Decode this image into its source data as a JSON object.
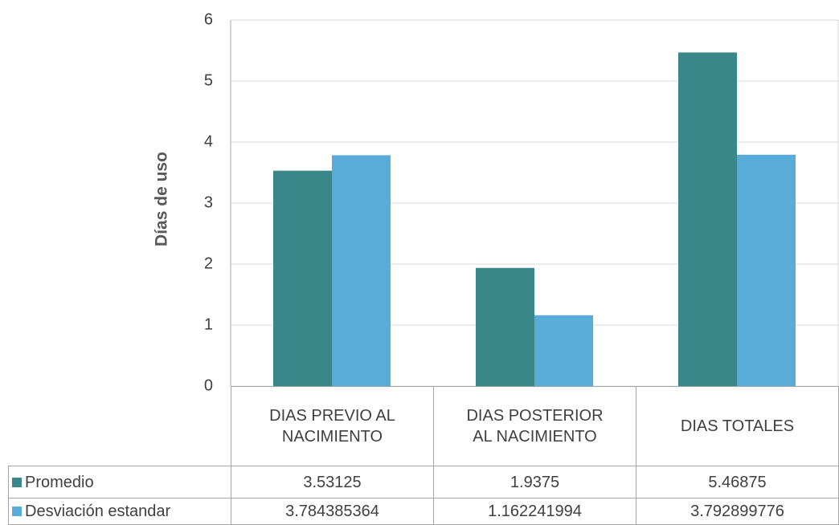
{
  "chart_data": {
    "type": "bar",
    "y_label": "Días de uso",
    "categories": [
      "DIAS PREVIO AL NACIMIENTO",
      "DIAS POSTERIOR AL NACIMIENTO",
      "DIAS TOTALES"
    ],
    "series": [
      {
        "name": "Promedio",
        "color": "#3a8789",
        "values": [
          3.53125,
          1.9375,
          5.46875
        ]
      },
      {
        "name": "Desviación estandar",
        "color": "#5aacd8",
        "values": [
          3.784385364,
          1.162241994,
          3.792899776
        ]
      }
    ],
    "ylim": [
      0,
      6
    ],
    "yticks": [
      0,
      1,
      2,
      3,
      4,
      5,
      6
    ],
    "grid": true
  }
}
